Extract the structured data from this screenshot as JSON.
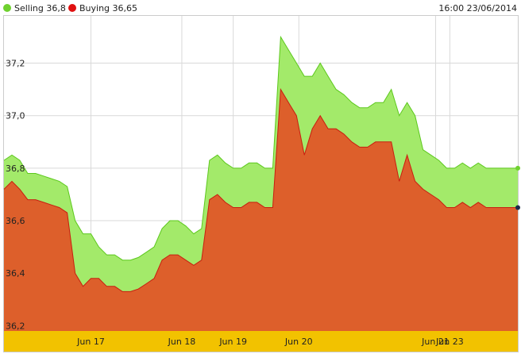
{
  "header": {
    "legend": [
      {
        "label": "Selling 36,8",
        "color": "#6fd12f"
      },
      {
        "label": "Buying 36,65",
        "color": "#e01010"
      }
    ],
    "timestamp": "16:00 23/06/2014"
  },
  "colors": {
    "selling_fill": "#a3ea6a",
    "selling_line": "#5cc81c",
    "buying_fill": "#dd5f2b",
    "buying_line": "#c81e10",
    "axis_bar": "#f2c200",
    "grid": "#d9d9d9",
    "end_marker_buying": "#1a2a4a"
  },
  "chart_data": {
    "type": "area",
    "title": "",
    "xlabel": "",
    "ylabel": "",
    "ylim": [
      36.18,
      37.38
    ],
    "yticks": [
      {
        "value": 36.2,
        "label": "36,2"
      },
      {
        "value": 36.4,
        "label": "36,4"
      },
      {
        "value": 36.6,
        "label": "36,6"
      },
      {
        "value": 36.8,
        "label": "36,8"
      },
      {
        "value": 37.0,
        "label": "37,0"
      },
      {
        "value": 37.2,
        "label": "37,2"
      }
    ],
    "xlim": [
      0,
      65
    ],
    "xticks": [
      {
        "x": 11,
        "label": "Jun 17"
      },
      {
        "x": 22.5,
        "label": "Jun 18"
      },
      {
        "x": 29,
        "label": "Jun 19"
      },
      {
        "x": 37.3,
        "label": "Jun 20"
      },
      {
        "x": 54.6,
        "label": "Jun 21"
      },
      {
        "x": 56.4,
        "label": "Jun 23"
      }
    ],
    "grid": true,
    "series": [
      {
        "name": "Selling",
        "x": [
          0,
          1,
          2,
          3,
          4,
          5,
          6,
          7,
          8,
          9,
          10,
          11,
          12,
          13,
          14,
          15,
          16,
          17,
          18,
          19,
          20,
          21,
          22,
          23,
          24,
          25,
          26,
          27,
          28,
          29,
          30,
          31,
          32,
          33,
          34,
          35,
          36,
          37,
          38,
          39,
          40,
          41,
          42,
          43,
          44,
          45,
          46,
          47,
          48,
          49,
          50,
          51,
          52,
          53,
          54,
          55,
          56,
          57,
          58,
          59,
          60,
          61,
          62,
          63,
          64,
          65
        ],
        "values": [
          36.83,
          36.85,
          36.83,
          36.78,
          36.78,
          36.77,
          36.76,
          36.75,
          36.73,
          36.6,
          36.55,
          36.55,
          36.5,
          36.47,
          36.47,
          36.45,
          36.45,
          36.46,
          36.48,
          36.5,
          36.57,
          36.6,
          36.6,
          36.58,
          36.55,
          36.57,
          36.83,
          36.85,
          36.82,
          36.8,
          36.8,
          36.82,
          36.82,
          36.8,
          36.8,
          37.3,
          37.25,
          37.2,
          37.15,
          37.15,
          37.2,
          37.15,
          37.1,
          37.08,
          37.05,
          37.03,
          37.03,
          37.05,
          37.05,
          37.1,
          37.0,
          37.05,
          37.0,
          36.87,
          36.85,
          36.83,
          36.8,
          36.8,
          36.82,
          36.8,
          36.82,
          36.8,
          36.8,
          36.8,
          36.8,
          36.8
        ]
      },
      {
        "name": "Buying",
        "x": [
          0,
          1,
          2,
          3,
          4,
          5,
          6,
          7,
          8,
          9,
          10,
          11,
          12,
          13,
          14,
          15,
          16,
          17,
          18,
          19,
          20,
          21,
          22,
          23,
          24,
          25,
          26,
          27,
          28,
          29,
          30,
          31,
          32,
          33,
          34,
          35,
          36,
          37,
          38,
          39,
          40,
          41,
          42,
          43,
          44,
          45,
          46,
          47,
          48,
          49,
          50,
          51,
          52,
          53,
          54,
          55,
          56,
          57,
          58,
          59,
          60,
          61,
          62,
          63,
          64,
          65
        ],
        "values": [
          36.72,
          36.75,
          36.72,
          36.68,
          36.68,
          36.67,
          36.66,
          36.65,
          36.63,
          36.4,
          36.35,
          36.38,
          36.38,
          36.35,
          36.35,
          36.33,
          36.33,
          36.34,
          36.36,
          36.38,
          36.45,
          36.47,
          36.47,
          36.45,
          36.43,
          36.45,
          36.68,
          36.7,
          36.67,
          36.65,
          36.65,
          36.67,
          36.67,
          36.65,
          36.65,
          37.1,
          37.05,
          37.0,
          36.85,
          36.95,
          37.0,
          36.95,
          36.95,
          36.93,
          36.9,
          36.88,
          36.88,
          36.9,
          36.9,
          36.9,
          36.75,
          36.85,
          36.75,
          36.72,
          36.7,
          36.68,
          36.65,
          36.65,
          36.67,
          36.65,
          36.67,
          36.65,
          36.65,
          36.65,
          36.65,
          36.65
        ]
      }
    ]
  }
}
